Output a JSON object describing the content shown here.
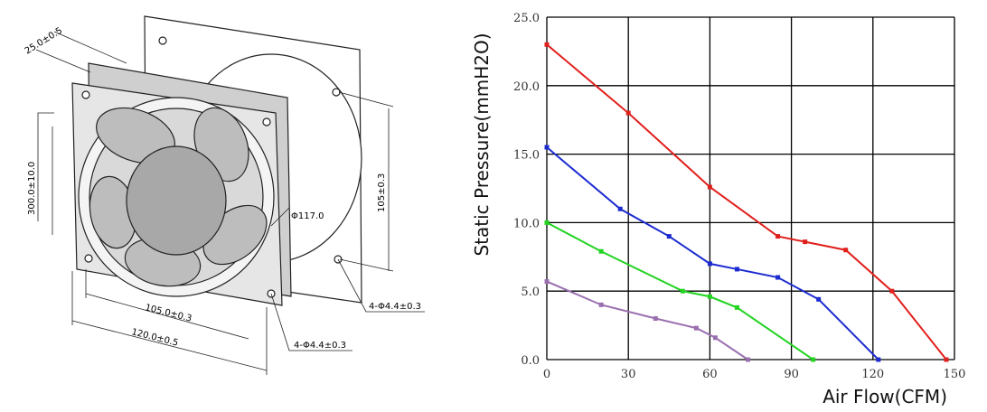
{
  "drawing": {
    "labels": [
      "25.0±0.5",
      "300.0±10.0",
      "105±0.3",
      "Φ117.0",
      "4-Φ4.4±0.3",
      "105.0±0.3",
      "120.0±0.5",
      "4-Φ4.4±0.3"
    ]
  },
  "chart_data": {
    "type": "line",
    "y_label": "Static Pressure(mmH2O)",
    "x_label": "Air Flow(CFM)",
    "xlim": [
      0,
      150
    ],
    "xticks": [
      0,
      30,
      60,
      90,
      120,
      150
    ],
    "ylim": [
      0,
      25
    ],
    "yticks": [
      {
        "value": 0,
        "label": "0.0"
      },
      {
        "value": 5,
        "label": "5.0"
      },
      {
        "value": 10,
        "label": "10.0"
      },
      {
        "value": 15,
        "label": "15.0"
      },
      {
        "value": 20,
        "label": "20.0"
      },
      {
        "value": 25,
        "label": "25.0"
      }
    ],
    "grid": true,
    "series": [
      {
        "color": "#e0201c",
        "x": [
          0,
          30,
          60,
          85,
          95,
          110,
          127,
          147
        ],
        "values": [
          23,
          18,
          12.6,
          9,
          8.6,
          8,
          5,
          0
        ]
      },
      {
        "color": "#1c2bd0",
        "x": [
          0,
          27,
          45,
          60,
          70,
          85,
          100,
          122
        ],
        "values": [
          15.5,
          11,
          9,
          7,
          6.6,
          6,
          4.4,
          0
        ]
      },
      {
        "color": "#22d322",
        "x": [
          0,
          20,
          50,
          60,
          70,
          98
        ],
        "values": [
          10,
          7.9,
          5,
          4.6,
          3.8,
          0
        ]
      },
      {
        "color": "#9a6fb0",
        "x": [
          0,
          20,
          40,
          55,
          62,
          74
        ],
        "values": [
          5.7,
          4,
          3,
          2.3,
          1.6,
          0
        ]
      }
    ]
  }
}
